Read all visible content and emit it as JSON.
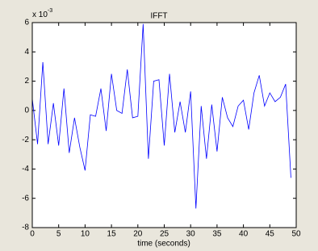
{
  "chart_data": {
    "type": "line",
    "title": "IFFT",
    "xlabel": "time (seconds)",
    "y_multiplier": {
      "base": "x 10",
      "power": "-3"
    },
    "x": [
      0,
      1,
      2,
      3,
      4,
      5,
      6,
      7,
      8,
      9,
      10,
      11,
      12,
      13,
      14,
      15,
      16,
      17,
      18,
      19,
      20,
      21,
      22,
      23,
      24,
      25,
      26,
      27,
      28,
      29,
      30,
      31,
      32,
      33,
      34,
      35,
      36,
      37,
      38,
      39,
      40,
      41,
      42,
      43,
      44,
      45,
      46,
      47,
      48,
      49
    ],
    "series": [
      {
        "name": "IFFT",
        "color": "#0000ff",
        "values": [
          0.8,
          -2.3,
          3.3,
          -2.3,
          0.5,
          -2.4,
          1.5,
          -2.9,
          -0.5,
          -2.5,
          -4.1,
          -0.3,
          -0.4,
          1.5,
          -1.4,
          2.5,
          0,
          -0.2,
          2.8,
          -0.5,
          -0.4,
          5.9,
          -3.3,
          2,
          2.1,
          -2.4,
          2.5,
          -1.5,
          0.6,
          -1.5,
          1.3,
          -6.7,
          0.3,
          -3.3,
          0.4,
          -2.8,
          0.9,
          -0.5,
          -1.1,
          0.3,
          0.7,
          -1.3,
          1.2,
          2.4,
          0.3,
          1.2,
          0.6,
          0.9,
          1.8,
          -4.6
        ]
      }
    ],
    "xlim": [
      0,
      50
    ],
    "xticks": [
      0,
      5,
      10,
      15,
      20,
      25,
      30,
      35,
      40,
      45,
      50
    ],
    "ylim": [
      -8,
      6
    ],
    "yticks": [
      -8,
      -6,
      -4,
      -2,
      0,
      2,
      4,
      6
    ]
  }
}
